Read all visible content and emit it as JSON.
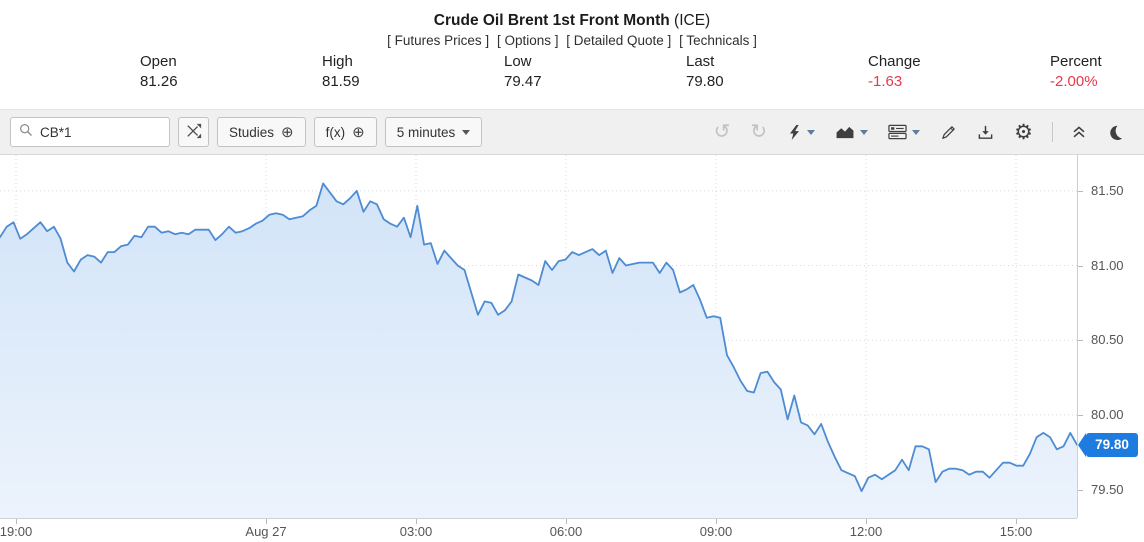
{
  "header": {
    "title": "Crude Oil Brent 1st Front Month",
    "title_suffix": "(ICE)",
    "links": [
      "[ Futures Prices ]",
      "[ Options ]",
      "[ Detailed Quote ]",
      "[ Technicals ]"
    ],
    "quote": {
      "fields": [
        {
          "label": "Open",
          "value": "81.26",
          "negative": false
        },
        {
          "label": "High",
          "value": "81.59",
          "negative": false
        },
        {
          "label": "Low",
          "value": "79.47",
          "negative": false
        },
        {
          "label": "Last",
          "value": "79.80",
          "negative": false
        },
        {
          "label": "Change",
          "value": "-1.63",
          "negative": true
        },
        {
          "label": "Percent",
          "value": "-2.00%",
          "negative": true
        }
      ]
    }
  },
  "toolbar": {
    "symbol_input": "CB*1",
    "studies_label": "Studies",
    "fx_label": "f(x)",
    "period_label": "5 minutes",
    "icons": {
      "search": "magnifier",
      "compare": "crossed-arrows",
      "studies_plus": "circle-plus",
      "fx_plus": "circle-plus",
      "period_caret": "caret-down",
      "undo": "undo-arrow",
      "redo": "redo-arrow",
      "alerts": "lightning-bolt",
      "chart_type": "area-chart",
      "layout": "panels",
      "draw": "pencil",
      "download": "download-tray",
      "settings": "gear",
      "collapse": "double-chevron-up",
      "theme": "moon-crescent"
    }
  },
  "colors": {
    "accent_tag_blue": "#1e7ce0",
    "negative_red": "#e8394a",
    "line_blue": "#4d8bd3",
    "fill_top": "#d2e4f8",
    "fill_bottom": "#ecf3fc",
    "grid_gray": "#d8d8d8"
  },
  "chart_data": {
    "type": "area",
    "symbol": "CB*1",
    "title": "Crude Oil Brent 1st Front Month (ICE)",
    "period": "5 minutes",
    "x_axis": {
      "unit": "hours since Aug 26 19:00",
      "t_min": -0.32,
      "t_max": 21.22,
      "grid": "dotted",
      "ticks": [
        {
          "label": "19:00",
          "t": 0
        },
        {
          "label": "Aug 27",
          "t": 5
        },
        {
          "label": "03:00",
          "t": 8
        },
        {
          "label": "06:00",
          "t": 11
        },
        {
          "label": "09:00",
          "t": 14
        },
        {
          "label": "12:00",
          "t": 17
        },
        {
          "label": "15:00",
          "t": 20
        }
      ]
    },
    "y_axis": {
      "side": "right",
      "min": 79.31,
      "max": 81.74,
      "grid": "dotted",
      "ticks": [
        {
          "label": "81.50",
          "value": 81.5
        },
        {
          "label": "81.00",
          "value": 81.0
        },
        {
          "label": "80.50",
          "value": 80.5
        },
        {
          "label": "80.00",
          "value": 80.0
        },
        {
          "label": "79.50",
          "value": 79.5
        }
      ]
    },
    "last_price": {
      "label": "79.80",
      "value": 79.8
    },
    "series": [
      {
        "name": "CB*1",
        "t_start": -0.32,
        "t_end": 21.22,
        "prices": [
          81.19,
          81.26,
          81.29,
          81.18,
          81.21,
          81.25,
          81.29,
          81.23,
          81.26,
          81.18,
          81.02,
          80.96,
          81.04,
          81.07,
          81.06,
          81.02,
          81.09,
          81.09,
          81.13,
          81.14,
          81.2,
          81.19,
          81.26,
          81.26,
          81.22,
          81.23,
          81.21,
          81.22,
          81.21,
          81.24,
          81.24,
          81.24,
          81.17,
          81.21,
          81.26,
          81.22,
          81.23,
          81.25,
          81.28,
          81.3,
          81.34,
          81.35,
          81.34,
          81.31,
          81.32,
          81.33,
          81.37,
          81.4,
          81.55,
          81.49,
          81.43,
          81.41,
          81.45,
          81.5,
          81.36,
          81.43,
          81.41,
          81.31,
          81.28,
          81.26,
          81.32,
          81.19,
          81.4,
          81.14,
          81.15,
          81.01,
          81.1,
          81.05,
          81.0,
          80.97,
          80.82,
          80.67,
          80.76,
          80.75,
          80.67,
          80.7,
          80.76,
          80.94,
          80.92,
          80.9,
          80.87,
          81.03,
          80.97,
          81.03,
          81.04,
          81.09,
          81.07,
          81.09,
          81.11,
          81.07,
          81.1,
          80.95,
          81.05,
          81.0,
          81.01,
          81.02,
          81.02,
          81.02,
          80.95,
          81.02,
          80.97,
          80.82,
          80.84,
          80.87,
          80.77,
          80.65,
          80.66,
          80.65,
          80.4,
          80.32,
          80.23,
          80.16,
          80.15,
          80.28,
          80.29,
          80.22,
          80.17,
          79.97,
          80.13,
          79.95,
          79.93,
          79.87,
          79.94,
          79.82,
          79.72,
          79.63,
          79.61,
          79.59,
          79.49,
          79.58,
          79.6,
          79.57,
          79.6,
          79.63,
          79.7,
          79.63,
          79.79,
          79.79,
          79.77,
          79.55,
          79.62,
          79.64,
          79.64,
          79.63,
          79.6,
          79.62,
          79.62,
          79.58,
          79.63,
          79.68,
          79.68,
          79.66,
          79.66,
          79.74,
          79.85,
          79.88,
          79.85,
          79.77,
          79.79,
          79.88,
          79.8
        ]
      }
    ]
  }
}
